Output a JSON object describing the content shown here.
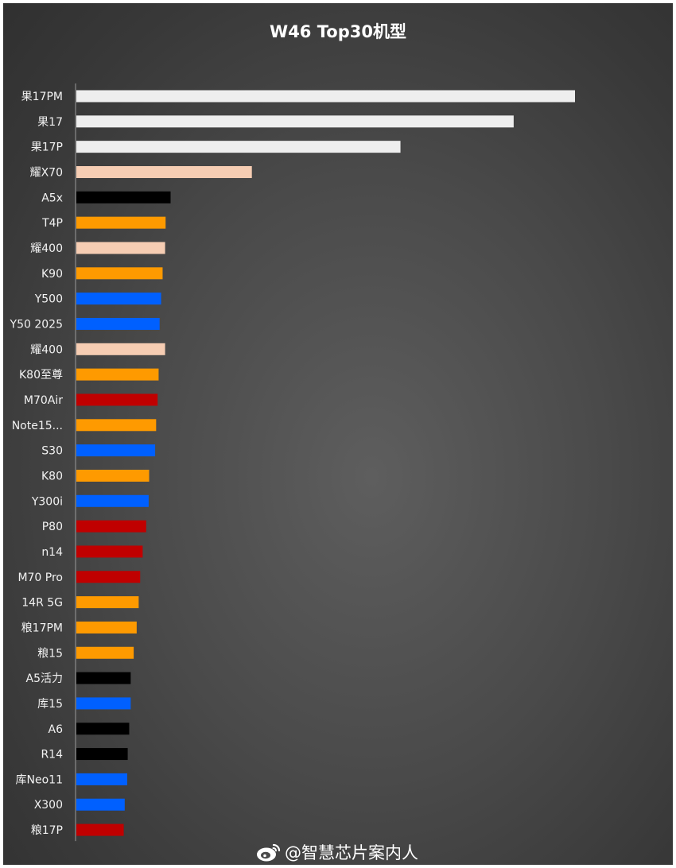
{
  "chart_data": {
    "type": "bar",
    "orientation": "horizontal",
    "title": "W46 Top30机型",
    "xlabel": "",
    "ylabel": "",
    "xlim": [
      0,
      100
    ],
    "grid": false,
    "legend": "none",
    "categories": [
      "果17PM",
      "果17",
      "果17P",
      "耀X70",
      "A5x",
      "T4P",
      "耀400",
      "K90",
      "Y500",
      "Y50 2025",
      "耀400",
      "K80至尊",
      "M70Air",
      "Note15...",
      "S30",
      "K80",
      "Y300i",
      "P80",
      "n14",
      "M70 Pro",
      "14R 5G",
      "粮17PM",
      "粮15",
      "A5活力",
      "库15",
      "A6",
      "R14",
      "库Neo11",
      "X300",
      "粮17P"
    ],
    "values": [
      100,
      87.7,
      65.0,
      35.2,
      18.9,
      17.9,
      17.8,
      17.3,
      17.0,
      16.7,
      17.8,
      16.5,
      16.3,
      16.0,
      15.8,
      14.6,
      14.5,
      14.0,
      13.3,
      12.8,
      12.5,
      12.1,
      11.5,
      10.9,
      10.9,
      10.6,
      10.3,
      10.2,
      9.7,
      9.5
    ],
    "colors": [
      "#eeeeee",
      "#eeeeee",
      "#eeeeee",
      "#f6cdb3",
      "#000000",
      "#fe9a00",
      "#f6cdb3",
      "#fe9a00",
      "#0060ff",
      "#0060ff",
      "#f6cdb3",
      "#fe9a00",
      "#c00000",
      "#fe9a00",
      "#0060ff",
      "#fe9a00",
      "#0060ff",
      "#c00000",
      "#c00000",
      "#c00000",
      "#fe9a00",
      "#fe9a00",
      "#fe9a00",
      "#000000",
      "#0060ff",
      "#000000",
      "#000000",
      "#0060ff",
      "#0060ff",
      "#c00000"
    ]
  },
  "watermark": {
    "icon": "weibo-icon",
    "text": "@智慧芯片案内人"
  }
}
